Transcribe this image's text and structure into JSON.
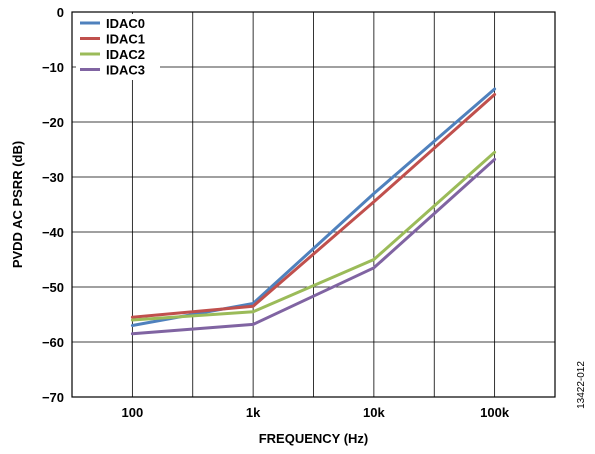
{
  "figure_id": "13422-012",
  "chart_data": {
    "type": "line",
    "title": "",
    "xlabel": "FREQUENCY (Hz)",
    "ylabel": "PVDD AC PSRR (dB)",
    "x_scale": "log",
    "xlim": [
      100,
      100000
    ],
    "ylim": [
      -70,
      0
    ],
    "x_ticks": [
      100,
      1000,
      10000,
      100000
    ],
    "x_tick_labels": [
      "100",
      "1k",
      "10k",
      "100k"
    ],
    "y_ticks": [
      0,
      -10,
      -20,
      -30,
      -40,
      -50,
      -60,
      -70
    ],
    "y_tick_labels": [
      "0",
      "−10",
      "−20",
      "−30",
      "−40",
      "−50",
      "−60",
      "−70"
    ],
    "grid": true,
    "legend_position": "top-left",
    "series": [
      {
        "name": "IDAC0",
        "color": "#4f81bd",
        "x": [
          100,
          1000,
          10000,
          100000
        ],
        "y": [
          -57.0,
          -53.0,
          -33.0,
          -14.0
        ]
      },
      {
        "name": "IDAC1",
        "color": "#c0504d",
        "x": [
          100,
          1000,
          10000,
          100000
        ],
        "y": [
          -55.5,
          -53.5,
          -34.5,
          -15.0
        ]
      },
      {
        "name": "IDAC2",
        "color": "#9bbb59",
        "x": [
          100,
          1000,
          10000,
          100000
        ],
        "y": [
          -56.0,
          -54.5,
          -45.0,
          -25.5
        ]
      },
      {
        "name": "IDAC3",
        "color": "#8064a2",
        "x": [
          100,
          1000,
          10000,
          100000
        ],
        "y": [
          -58.5,
          -56.8,
          -46.5,
          -26.8
        ]
      }
    ]
  }
}
